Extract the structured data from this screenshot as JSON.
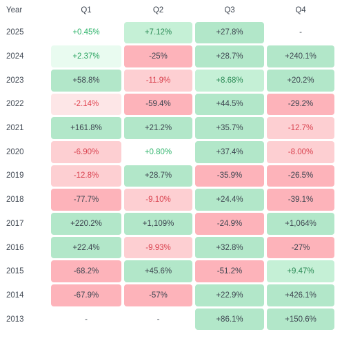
{
  "header": {
    "year": "Year",
    "quarters": [
      "Q1",
      "Q2",
      "Q3",
      "Q4"
    ]
  },
  "rows": [
    {
      "year": "2025",
      "cells": [
        {
          "text": "+0.45%",
          "level": "g0"
        },
        {
          "text": "+7.12%",
          "level": "g2"
        },
        {
          "text": "+27.8%",
          "level": "g3"
        },
        {
          "text": "-",
          "level": "dash"
        }
      ]
    },
    {
      "year": "2024",
      "cells": [
        {
          "text": "+2.37%",
          "level": "g1"
        },
        {
          "text": "-25%",
          "level": "r3"
        },
        {
          "text": "+28.7%",
          "level": "g3"
        },
        {
          "text": "+240.1%",
          "level": "g3"
        }
      ]
    },
    {
      "year": "2023",
      "cells": [
        {
          "text": "+58.8%",
          "level": "g3"
        },
        {
          "text": "-11.9%",
          "level": "r2"
        },
        {
          "text": "+8.68%",
          "level": "g2"
        },
        {
          "text": "+20.2%",
          "level": "g3"
        }
      ]
    },
    {
      "year": "2022",
      "cells": [
        {
          "text": "-2.14%",
          "level": "r1"
        },
        {
          "text": "-59.4%",
          "level": "r3"
        },
        {
          "text": "+44.5%",
          "level": "g3"
        },
        {
          "text": "-29.2%",
          "level": "r3"
        }
      ]
    },
    {
      "year": "2021",
      "cells": [
        {
          "text": "+161.8%",
          "level": "g3"
        },
        {
          "text": "+21.2%",
          "level": "g3"
        },
        {
          "text": "+35.7%",
          "level": "g3"
        },
        {
          "text": "-12.7%",
          "level": "r2"
        }
      ]
    },
    {
      "year": "2020",
      "cells": [
        {
          "text": "-6.90%",
          "level": "r2"
        },
        {
          "text": "+0.80%",
          "level": "g0"
        },
        {
          "text": "+37.4%",
          "level": "g3"
        },
        {
          "text": "-8.00%",
          "level": "r2"
        }
      ]
    },
    {
      "year": "2019",
      "cells": [
        {
          "text": "-12.8%",
          "level": "r2"
        },
        {
          "text": "+28.7%",
          "level": "g3"
        },
        {
          "text": "-35.9%",
          "level": "r3"
        },
        {
          "text": "-26.5%",
          "level": "r3"
        }
      ]
    },
    {
      "year": "2018",
      "cells": [
        {
          "text": "-77.7%",
          "level": "r3"
        },
        {
          "text": "-9.10%",
          "level": "r2"
        },
        {
          "text": "+24.4%",
          "level": "g3"
        },
        {
          "text": "-39.1%",
          "level": "r3"
        }
      ]
    },
    {
      "year": "2017",
      "cells": [
        {
          "text": "+220.2%",
          "level": "g3"
        },
        {
          "text": "+1,109%",
          "level": "g3"
        },
        {
          "text": "-24.9%",
          "level": "r3"
        },
        {
          "text": "+1,064%",
          "level": "g3"
        }
      ]
    },
    {
      "year": "2016",
      "cells": [
        {
          "text": "+22.4%",
          "level": "g3"
        },
        {
          "text": "-9.93%",
          "level": "r2"
        },
        {
          "text": "+32.8%",
          "level": "g3"
        },
        {
          "text": "-27%",
          "level": "r3"
        }
      ]
    },
    {
      "year": "2015",
      "cells": [
        {
          "text": "-68.2%",
          "level": "r3"
        },
        {
          "text": "+45.6%",
          "level": "g3"
        },
        {
          "text": "-51.2%",
          "level": "r3"
        },
        {
          "text": "+9.47%",
          "level": "g2"
        }
      ]
    },
    {
      "year": "2014",
      "cells": [
        {
          "text": "-67.9%",
          "level": "r3"
        },
        {
          "text": "-57%",
          "level": "r3"
        },
        {
          "text": "+22.9%",
          "level": "g3"
        },
        {
          "text": "+426.1%",
          "level": "g3"
        }
      ]
    },
    {
      "year": "2013",
      "cells": [
        {
          "text": "-",
          "level": "dash"
        },
        {
          "text": "-",
          "level": "dash"
        },
        {
          "text": "+86.1%",
          "level": "g3"
        },
        {
          "text": "+150.6%",
          "level": "g3"
        }
      ]
    }
  ],
  "colors": {
    "strong_green": "#b2e7c9",
    "mid_green": "#c5f0d6",
    "light_green": "#e9fbf0",
    "strong_red": "#fdb3ba",
    "mid_red": "#fdcfd2",
    "light_red": "#fde6e7"
  }
}
